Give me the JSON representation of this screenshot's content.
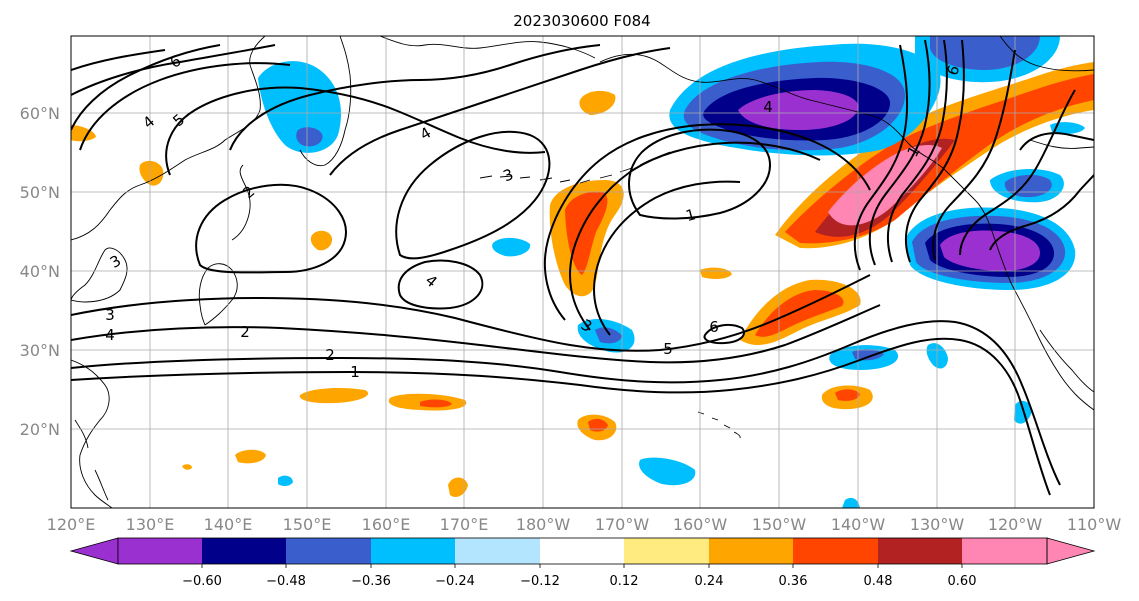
{
  "title": "2023030600 F084",
  "map": {
    "lat_labels": [
      "60°N",
      "50°N",
      "40°N",
      "30°N",
      "20°N"
    ],
    "lat_values": [
      60,
      50,
      40,
      30,
      20
    ],
    "lon_labels": [
      "120°E",
      "130°E",
      "140°E",
      "150°E",
      "160°E",
      "170°E",
      "180°W",
      "170°W",
      "160°W",
      "150°W",
      "140°W",
      "130°W",
      "120°W",
      "110°W"
    ],
    "lon_min_label": "120°E",
    "lon_max_label": "110°W",
    "contour_labels": [
      "6",
      "4",
      "5",
      "3",
      "4",
      "3",
      "2",
      "1",
      "3",
      "4",
      "2",
      "1",
      "5",
      "6",
      "4",
      "6",
      "1",
      "3",
      "4",
      "2"
    ],
    "colors": {
      "land_coast": "#000000",
      "grid": "#aaaaaa",
      "contour": "#000000"
    }
  },
  "colorbar": {
    "labels": [
      "−0.60",
      "−0.48",
      "−0.36",
      "−0.24",
      "−0.12",
      "0.12",
      "0.24",
      "0.36",
      "0.48",
      "0.60"
    ],
    "colors": [
      "#9b30d0",
      "#00008b",
      "#3a5fcd",
      "#00bfff",
      "#b3e5ff",
      "#ffffff",
      "#ffeb80",
      "#ffa500",
      "#ff4500",
      "#b22222",
      "#ff85b3"
    ]
  }
}
